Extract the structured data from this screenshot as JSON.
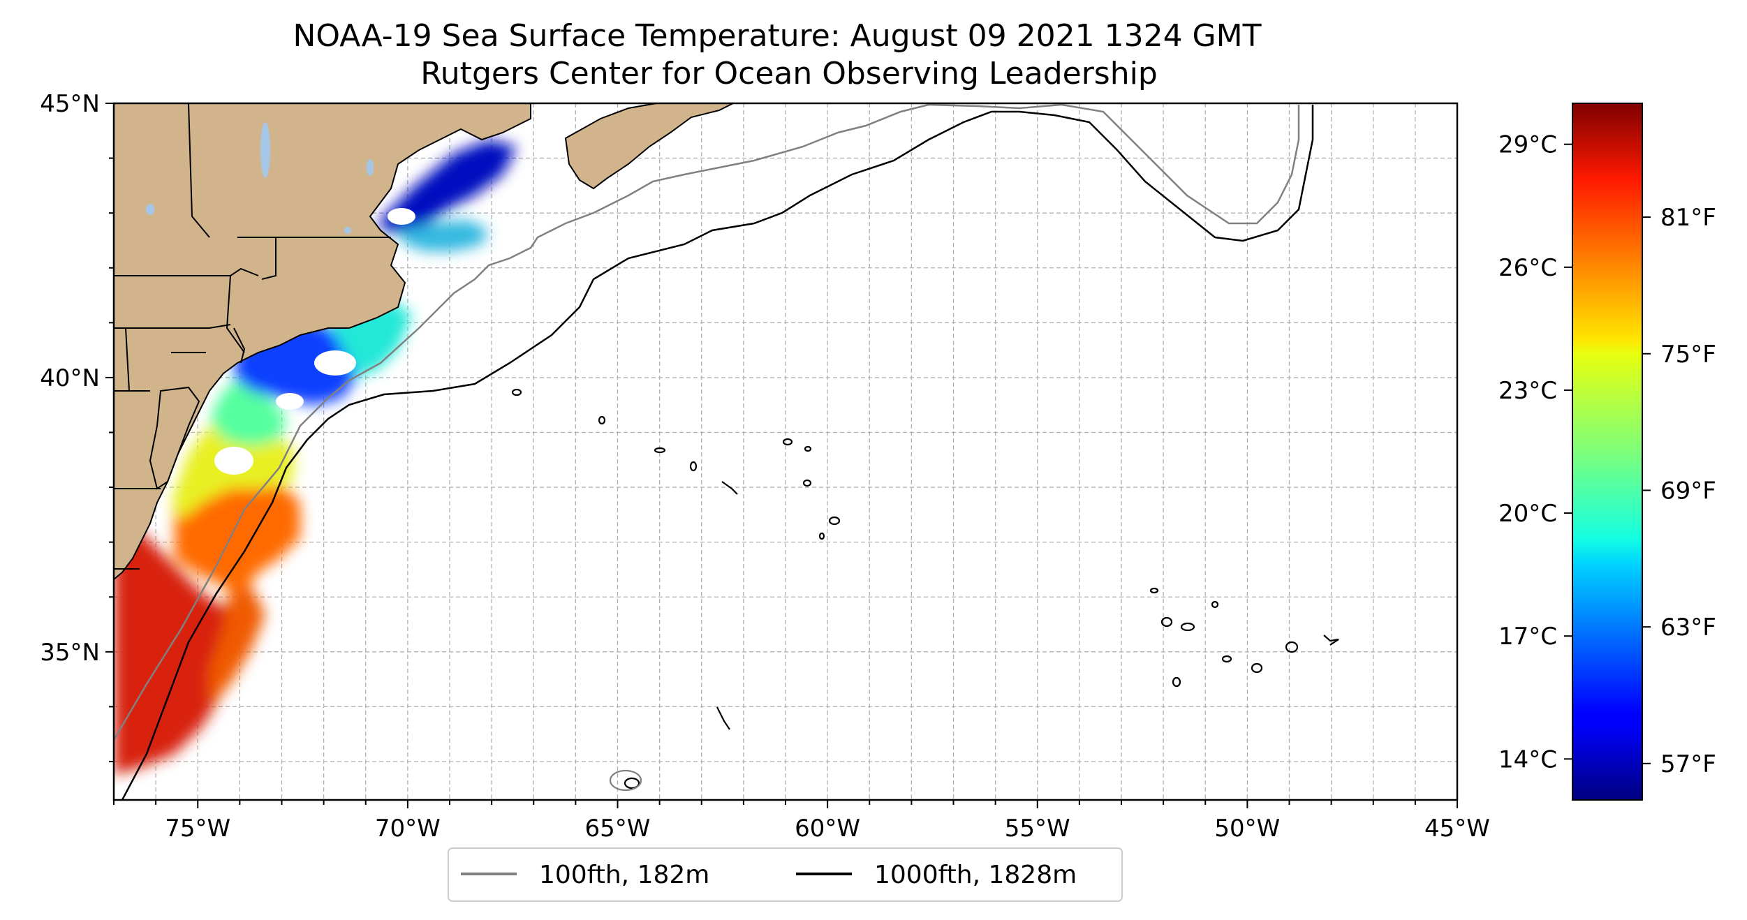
{
  "title_line1": "NOAA-19 Sea Surface Temperature: August 09 2021 1324 GMT",
  "title_line2": "Rutgers Center for Ocean Observing Leadership",
  "colors": {
    "land": "#d2b48c",
    "lakes": "#a6c6e8",
    "grid": "#b0b0b0",
    "isobath_100": "#808080",
    "isobath_1000": "#000000"
  },
  "chart_data": {
    "type": "heatmap",
    "colormap": "jet",
    "x_ticks": [
      "75°W",
      "70°W",
      "65°W",
      "60°W",
      "55°W",
      "50°W",
      "45°W"
    ],
    "x_tick_values": [
      -75,
      -70,
      -65,
      -60,
      -55,
      -50,
      -45
    ],
    "y_ticks": [
      "45°N",
      "40°N",
      "35°N"
    ],
    "y_tick_values": [
      45,
      40,
      35
    ],
    "xlim": [
      -77,
      -45
    ],
    "ylim": [
      32.3,
      45
    ],
    "grid": true,
    "legend_position": "bottom-center",
    "legend": [
      {
        "label": "100fth, 182m",
        "color": "#808080"
      },
      {
        "label": "1000fth, 1828m",
        "color": "#000000"
      }
    ],
    "colorbar": {
      "range_f": [
        55.4,
        86
      ],
      "celsius_ticks": [
        "29°C",
        "26°C",
        "23°C",
        "20°C",
        "17°C",
        "14°C"
      ],
      "celsius_values": [
        29,
        26,
        23,
        20,
        17,
        14
      ],
      "fahrenheit_ticks": [
        "81°F",
        "75°F",
        "69°F",
        "63°F",
        "57°F"
      ],
      "fahrenheit_values": [
        81,
        75,
        69,
        63,
        57
      ]
    }
  }
}
